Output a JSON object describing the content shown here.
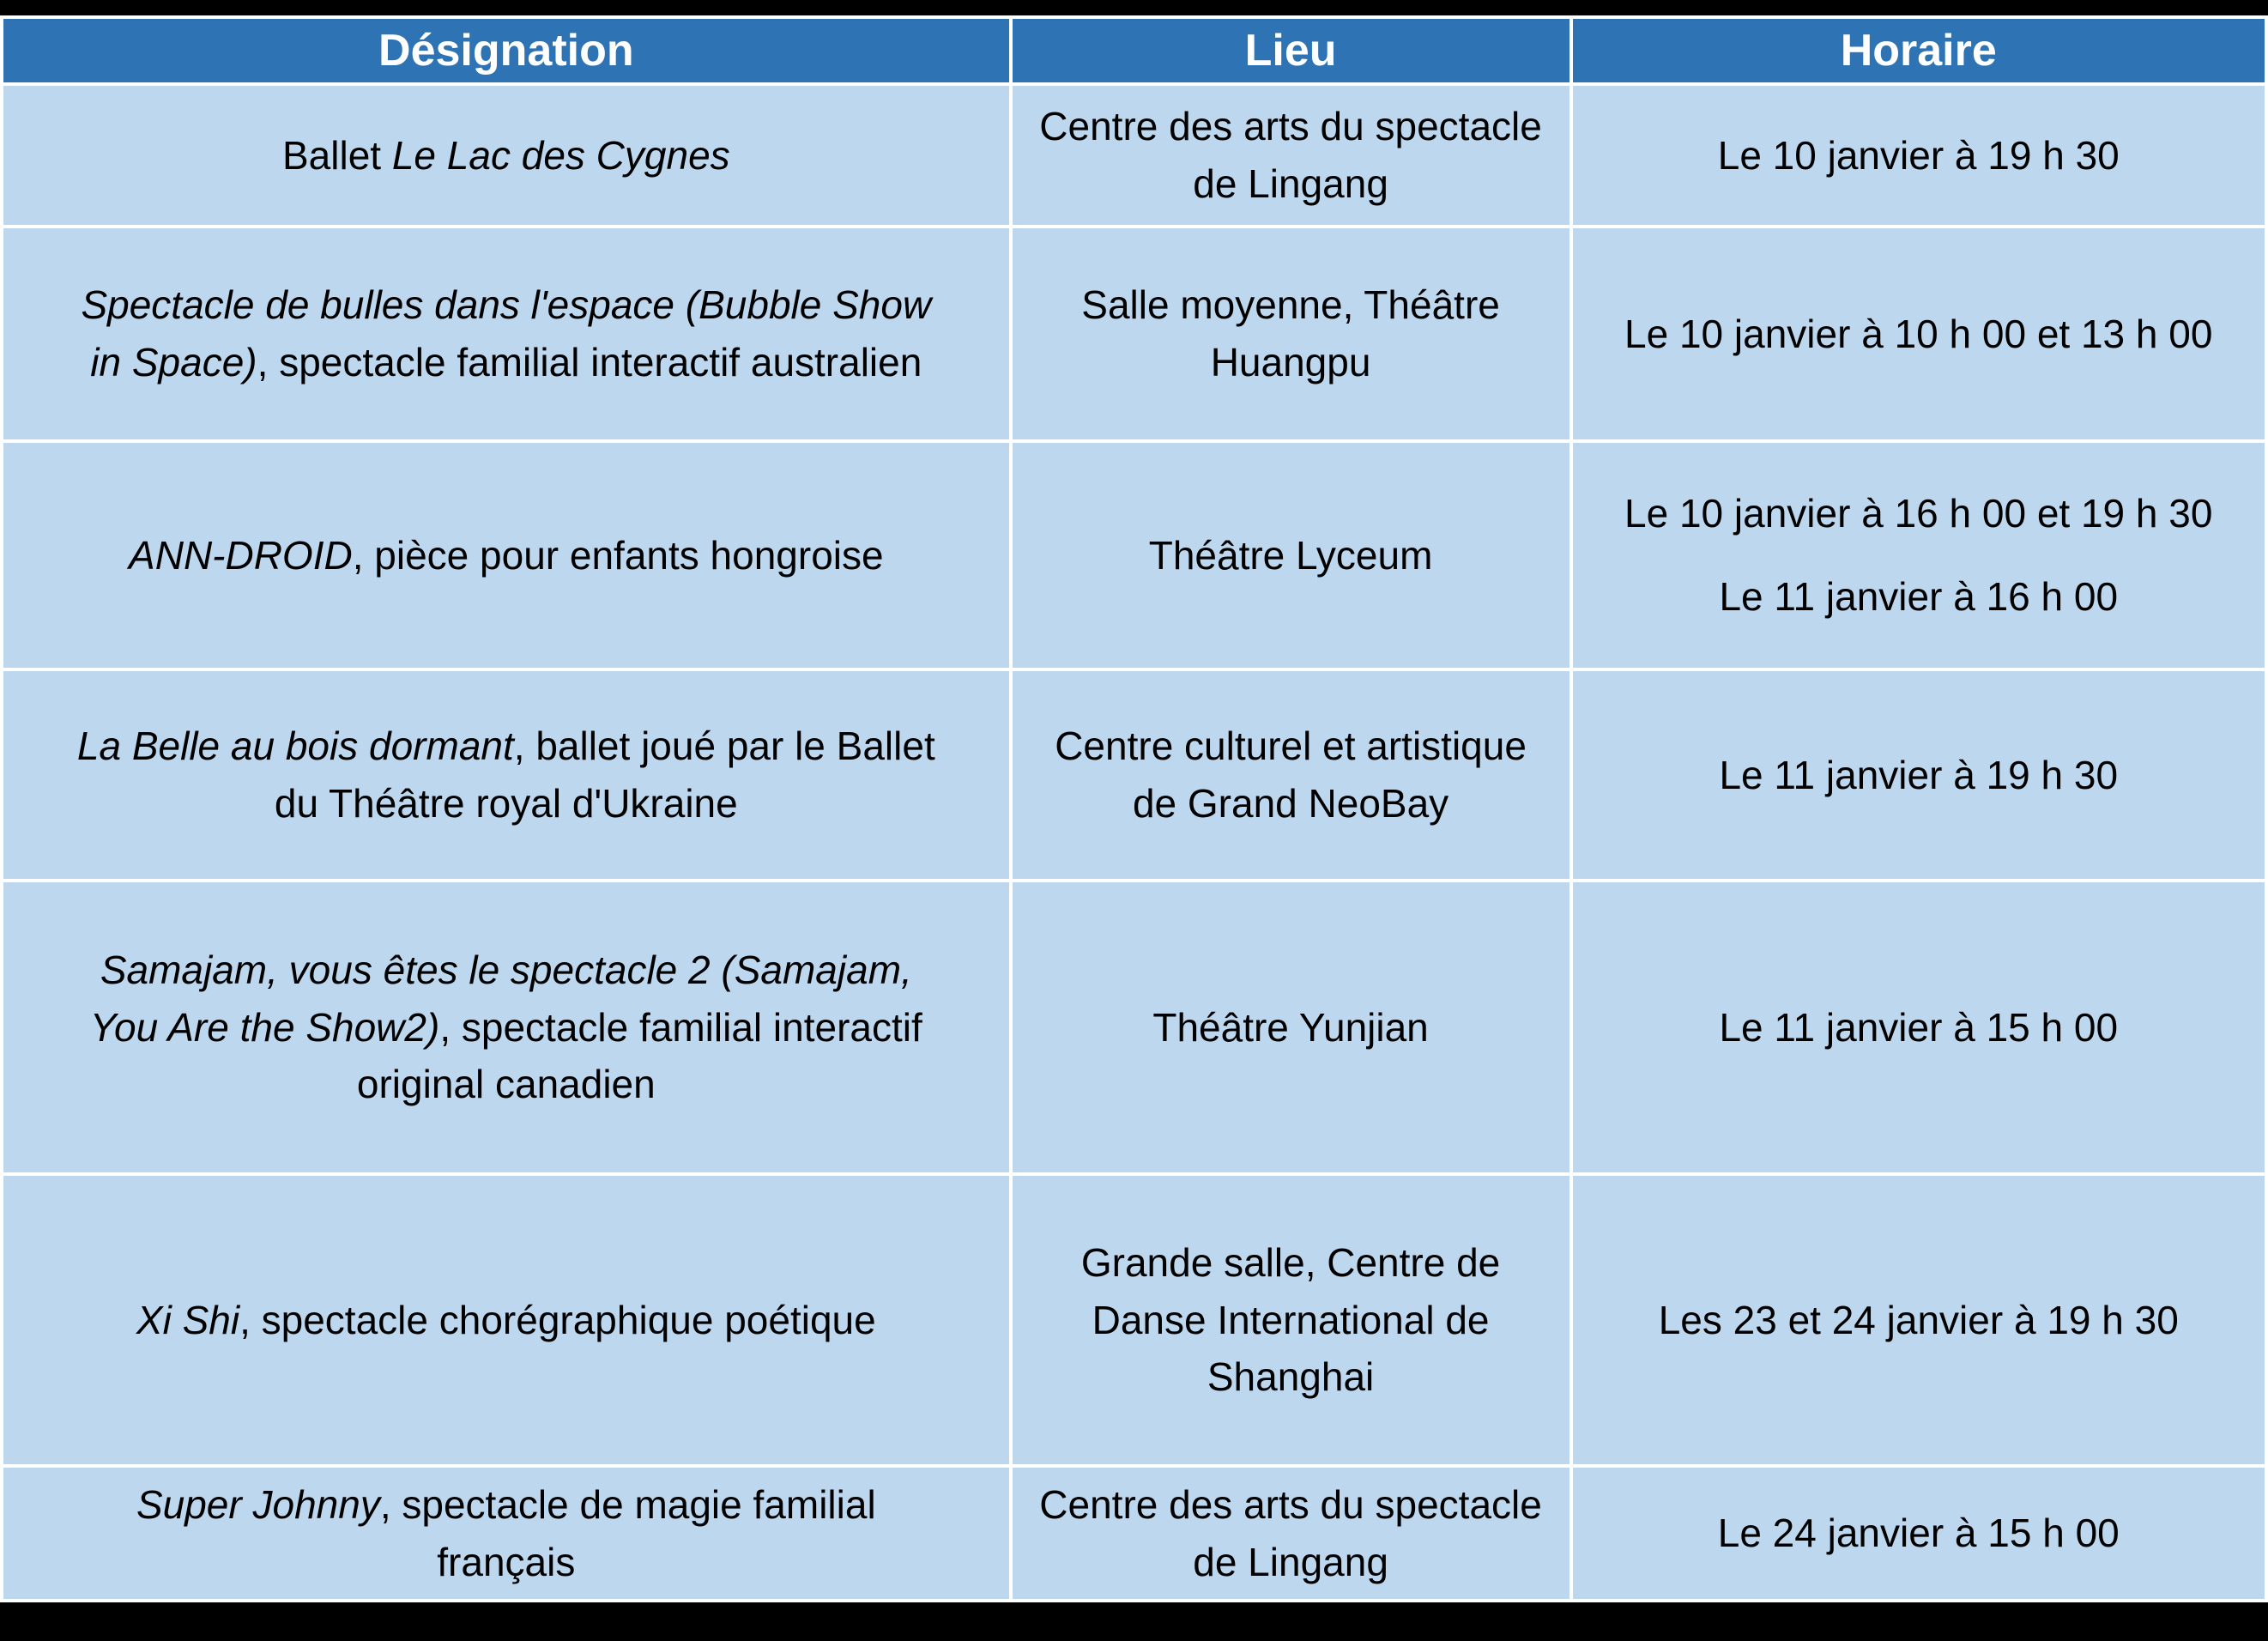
{
  "page": {
    "background": "#000000"
  },
  "table": {
    "style": {
      "header_bg": "#2E74B5",
      "header_text": "#FFFFFF",
      "body_bg": "#BDD7EE",
      "body_text": "#000000",
      "grid": "#FFFFFF"
    },
    "columns": [
      {
        "label": "Désignation"
      },
      {
        "label": "Lieu"
      },
      {
        "label": "Horaire"
      }
    ],
    "rows": [
      {
        "designation": {
          "prefix": "Ballet ",
          "title": "Le Lac des Cygnes",
          "suffix": ""
        },
        "lieu": "Centre des arts du spectacle de Lingang",
        "horaire": [
          "Le 10 janvier à 19 h 30"
        ]
      },
      {
        "designation": {
          "prefix": "",
          "title": "Spectacle de bulles dans l'espace (Bubble Show in Space)",
          "suffix": ", spectacle familial interactif australien"
        },
        "lieu": "Salle moyenne, Théâtre Huangpu",
        "horaire": [
          "Le 10 janvier à 10 h 00 et 13 h 00"
        ]
      },
      {
        "designation": {
          "prefix": "",
          "title": "ANN-DROID",
          "suffix": ", pièce pour enfants hongroise"
        },
        "lieu": "Théâtre Lyceum",
        "horaire": [
          "Le 10 janvier à 16 h 00 et 19 h 30",
          "Le 11 janvier à 16 h 00"
        ]
      },
      {
        "designation": {
          "prefix": "",
          "title": "La Belle au bois dormant",
          "suffix": ", ballet joué par le Ballet du Théâtre royal d'Ukraine"
        },
        "lieu": "Centre culturel et artistique de Grand NeoBay",
        "horaire": [
          "Le 11 janvier à 19 h 30"
        ]
      },
      {
        "designation": {
          "prefix": "",
          "title": "Samajam, vous êtes le spectacle 2 (Samajam, You Are the Show2)",
          "suffix": ", spectacle familial interactif original canadien"
        },
        "lieu": "Théâtre Yunjian",
        "horaire": [
          "Le 11 janvier à 15 h 00"
        ]
      },
      {
        "designation": {
          "prefix": "",
          "title": "Xi Shi",
          "suffix": ", spectacle chorégraphique poétique"
        },
        "lieu": "Grande salle, Centre de Danse International de Shanghai",
        "horaire": [
          "Les 23 et 24 janvier à 19 h 30"
        ]
      },
      {
        "designation": {
          "prefix": "",
          "title": "Super Johnny",
          "suffix": ", spectacle de magie familial français"
        },
        "lieu": "Centre des arts du spectacle de Lingang",
        "horaire": [
          "Le 24 janvier à 15 h 00"
        ]
      }
    ]
  }
}
